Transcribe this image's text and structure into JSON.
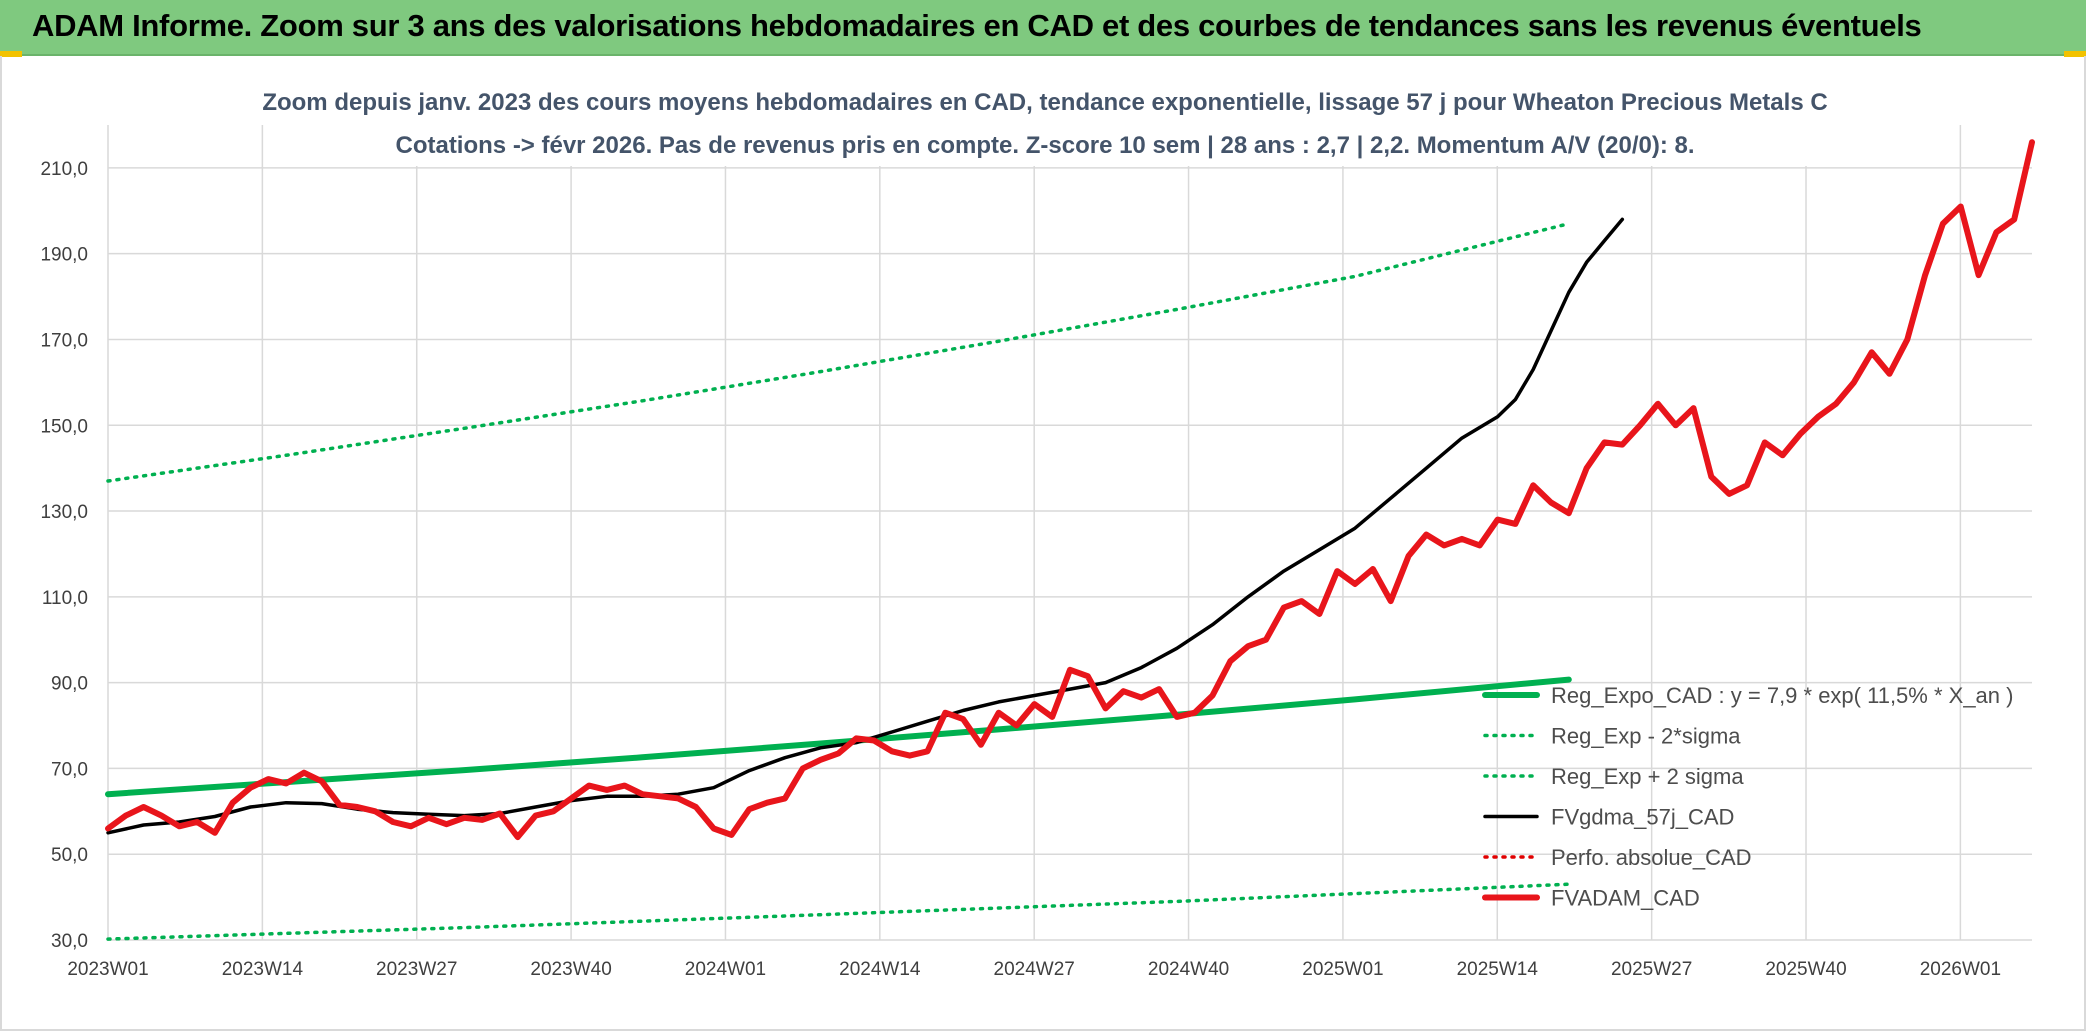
{
  "header": {
    "title": "ADAM Informe. Zoom sur 3 ans des valorisations hebdomadaires en CAD et des courbes de tendances sans les revenus éventuels"
  },
  "colors": {
    "banner": "#7fc97f",
    "trend": "#00b050",
    "sigma": "#00b050",
    "fvgdma": "#000000",
    "perfo": "#e00000",
    "fvadam": "#e8151b",
    "grid": "#d9d9d9",
    "title": "#44546a"
  },
  "chart_data": {
    "type": "line",
    "title_line1": "Zoom depuis janv. 2023 des cours moyens hebdomadaires en CAD, tendance exponentielle, lissage 57 j pour Wheaton Precious Metals C",
    "title_line2": "Cotations -> févr 2026. Pas de revenus pris en compte. Z-score 10 sem | 28 ans : 2,7 | 2,2. Momentum A/V (20/0): 8.",
    "x_tick_labels": [
      "2023W01",
      "2023W14",
      "2023W27",
      "2023W40",
      "2024W01",
      "2024W14",
      "2024W27",
      "2024W40",
      "2025W01",
      "2025W14",
      "2025W27",
      "2025W40",
      "2026W01"
    ],
    "y_tick_labels": [
      "30,0",
      "50,0",
      "70,0",
      "90,0",
      "110,0",
      "130,0",
      "150,0",
      "170,0",
      "190,0",
      "210,0"
    ],
    "ylim": [
      30,
      220
    ],
    "x_range_weeks": [
      0,
      165
    ],
    "grid": true,
    "legend_position": "bottom-right",
    "series": [
      {
        "name": "Reg_Expo_CAD : y = 7,9 * exp( 11,5% *  X_an )",
        "style": "solid-thick",
        "color_key": "trend",
        "points": [
          [
            0,
            64.0
          ],
          [
            20,
            66.8
          ],
          [
            40,
            69.6
          ],
          [
            60,
            72.6
          ],
          [
            80,
            75.8
          ],
          [
            100,
            79.1
          ],
          [
            120,
            82.5
          ],
          [
            140,
            86.1
          ],
          [
            164,
            90.7
          ]
        ]
      },
      {
        "name": "Reg_Exp - 2*sigma",
        "style": "dotted",
        "color_key": "sigma",
        "points": [
          [
            0,
            30.2
          ],
          [
            40,
            32.9
          ],
          [
            80,
            35.9
          ],
          [
            120,
            39.0
          ],
          [
            164,
            43.0
          ]
        ]
      },
      {
        "name": "Reg_Exp + 2 sigma",
        "style": "dotted",
        "color_key": "sigma",
        "points": [
          [
            0,
            137.0
          ],
          [
            20,
            143.0
          ],
          [
            40,
            149.3
          ],
          [
            60,
            155.7
          ],
          [
            80,
            162.5
          ],
          [
            100,
            169.6
          ],
          [
            120,
            177.0
          ],
          [
            140,
            184.7
          ],
          [
            164,
            197.0
          ]
        ]
      },
      {
        "name": "FVgdma_57j_CAD",
        "style": "solid",
        "color_key": "fvgdma",
        "points": [
          [
            0,
            55.0
          ],
          [
            4,
            56.8
          ],
          [
            8,
            57.5
          ],
          [
            12,
            58.8
          ],
          [
            16,
            61.0
          ],
          [
            20,
            62.0
          ],
          [
            24,
            61.8
          ],
          [
            28,
            60.5
          ],
          [
            32,
            59.7
          ],
          [
            36,
            59.3
          ],
          [
            40,
            59.0
          ],
          [
            44,
            59.5
          ],
          [
            48,
            61.0
          ],
          [
            52,
            62.5
          ],
          [
            56,
            63.5
          ],
          [
            60,
            63.5
          ],
          [
            64,
            64.0
          ],
          [
            68,
            65.5
          ],
          [
            72,
            69.5
          ],
          [
            76,
            72.5
          ],
          [
            80,
            74.8
          ],
          [
            84,
            76.0
          ],
          [
            88,
            78.5
          ],
          [
            92,
            81.0
          ],
          [
            96,
            83.5
          ],
          [
            100,
            85.5
          ],
          [
            104,
            87.0
          ],
          [
            108,
            88.5
          ],
          [
            112,
            90.0
          ],
          [
            116,
            93.5
          ],
          [
            120,
            98.0
          ],
          [
            124,
            103.5
          ],
          [
            128,
            110.0
          ],
          [
            132,
            116.0
          ],
          [
            136,
            121.0
          ],
          [
            140,
            126.0
          ],
          [
            144,
            133.0
          ],
          [
            148,
            140.0
          ],
          [
            152,
            147.0
          ],
          [
            156,
            152.0
          ],
          [
            158,
            156.0
          ],
          [
            160,
            163.0
          ],
          [
            162,
            172.0
          ],
          [
            164,
            181.0
          ],
          [
            166,
            188.0
          ],
          [
            168,
            193.0
          ],
          [
            170,
            198.0
          ]
        ]
      },
      {
        "name": "Perfo. absolue_CAD",
        "style": "dotted",
        "color_key": "perfo",
        "points": []
      },
      {
        "name": "FVADAM_CAD",
        "style": "solid-thick",
        "color_key": "fvadam",
        "points": [
          [
            0,
            56.0
          ],
          [
            2,
            59.0
          ],
          [
            4,
            61.0
          ],
          [
            6,
            59.0
          ],
          [
            8,
            56.5
          ],
          [
            10,
            57.5
          ],
          [
            12,
            55.0
          ],
          [
            14,
            62.0
          ],
          [
            16,
            65.5
          ],
          [
            18,
            67.5
          ],
          [
            20,
            66.5
          ],
          [
            22,
            69.0
          ],
          [
            24,
            67.0
          ],
          [
            26,
            61.5
          ],
          [
            28,
            61.0
          ],
          [
            30,
            60.0
          ],
          [
            32,
            57.5
          ],
          [
            34,
            56.5
          ],
          [
            36,
            58.5
          ],
          [
            38,
            57.0
          ],
          [
            40,
            58.5
          ],
          [
            42,
            58.0
          ],
          [
            44,
            59.5
          ],
          [
            46,
            54.0
          ],
          [
            48,
            59.0
          ],
          [
            50,
            60.0
          ],
          [
            52,
            63.0
          ],
          [
            54,
            66.0
          ],
          [
            56,
            65.0
          ],
          [
            58,
            66.0
          ],
          [
            60,
            64.0
          ],
          [
            62,
            63.5
          ],
          [
            64,
            63.0
          ],
          [
            66,
            61.0
          ],
          [
            68,
            56.0
          ],
          [
            70,
            54.5
          ],
          [
            72,
            60.5
          ],
          [
            74,
            62.0
          ],
          [
            76,
            63.0
          ],
          [
            78,
            70.0
          ],
          [
            80,
            72.0
          ],
          [
            82,
            73.5
          ],
          [
            84,
            77.0
          ],
          [
            86,
            76.5
          ],
          [
            88,
            74.0
          ],
          [
            90,
            73.0
          ],
          [
            92,
            74.0
          ],
          [
            94,
            83.0
          ],
          [
            96,
            81.5
          ],
          [
            98,
            75.5
          ],
          [
            100,
            83.0
          ],
          [
            102,
            80.0
          ],
          [
            104,
            85.0
          ],
          [
            106,
            82.0
          ],
          [
            108,
            93.0
          ],
          [
            110,
            91.5
          ],
          [
            112,
            84.0
          ],
          [
            114,
            88.0
          ],
          [
            116,
            86.5
          ],
          [
            118,
            88.5
          ],
          [
            120,
            82.0
          ],
          [
            122,
            83.0
          ],
          [
            124,
            87.0
          ],
          [
            126,
            95.0
          ],
          [
            128,
            98.5
          ],
          [
            130,
            100.0
          ],
          [
            132,
            107.5
          ],
          [
            134,
            109.0
          ],
          [
            136,
            106.0
          ],
          [
            138,
            116.0
          ],
          [
            140,
            113.0
          ],
          [
            142,
            116.5
          ],
          [
            144,
            109.0
          ],
          [
            146,
            119.5
          ],
          [
            148,
            124.5
          ],
          [
            150,
            122.0
          ],
          [
            152,
            123.5
          ],
          [
            154,
            122.0
          ],
          [
            156,
            128.0
          ],
          [
            158,
            127.0
          ],
          [
            160,
            136.0
          ],
          [
            162,
            132.0
          ],
          [
            164,
            129.5
          ],
          [
            166,
            140.0
          ],
          [
            168,
            146.0
          ],
          [
            170,
            145.5
          ],
          [
            172,
            150.0
          ],
          [
            174,
            155.0
          ],
          [
            176,
            150.0
          ],
          [
            178,
            154.0
          ],
          [
            180,
            138.0
          ],
          [
            182,
            134.0
          ],
          [
            184,
            136.0
          ],
          [
            186,
            146.0
          ],
          [
            188,
            143.0
          ],
          [
            190,
            148.0
          ],
          [
            192,
            152.0
          ],
          [
            194,
            155.0
          ],
          [
            196,
            160.0
          ],
          [
            198,
            167.0
          ],
          [
            200,
            162.0
          ],
          [
            202,
            170.0
          ],
          [
            204,
            185.0
          ],
          [
            206,
            197.0
          ],
          [
            208,
            201.0
          ],
          [
            210,
            185.0
          ],
          [
            212,
            195.0
          ],
          [
            214,
            198.0
          ],
          [
            216,
            216.0
          ]
        ]
      }
    ]
  }
}
